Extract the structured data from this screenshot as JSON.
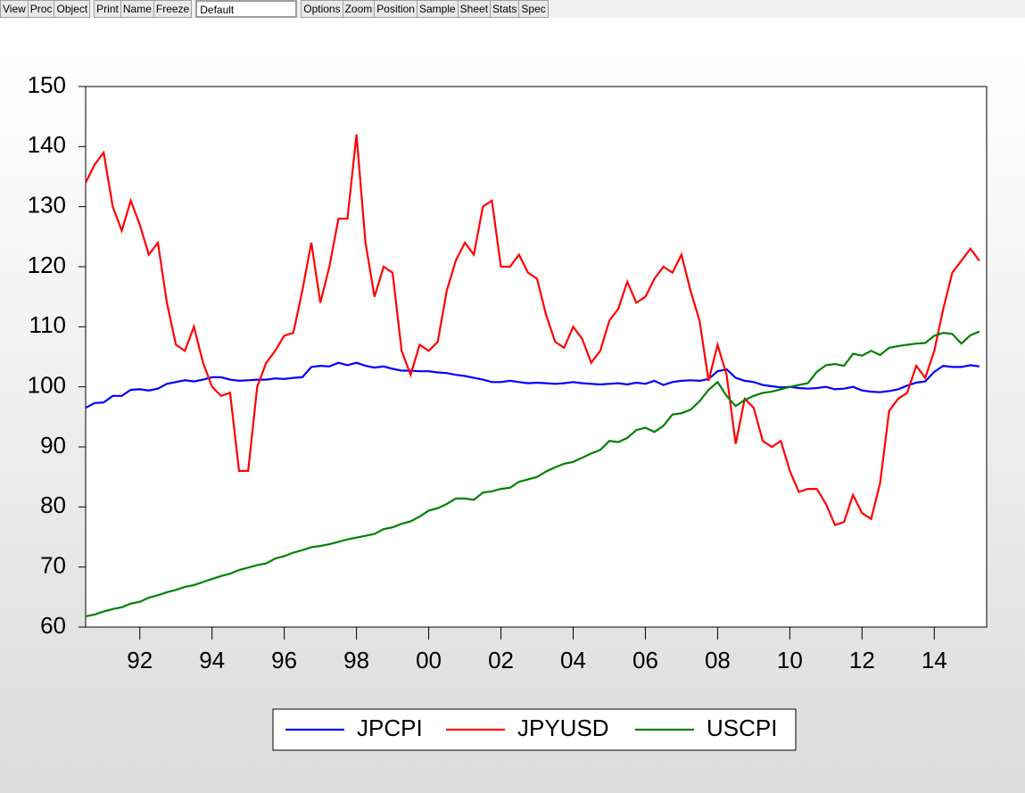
{
  "toolbar": {
    "buttons_left": [
      "View",
      "Proc",
      "Object"
    ],
    "buttons_mid": [
      "Print",
      "Name",
      "Freeze"
    ],
    "dropdown": "Default",
    "buttons_right": [
      "Options",
      "Zoom",
      "Position",
      "Sample",
      "Sheet",
      "Stats",
      "Spec"
    ]
  },
  "chart_data": {
    "type": "line",
    "legend": "bottom",
    "grid": false,
    "x": [
      1990.5,
      1990.75,
      1991,
      1991.25,
      1991.5,
      1991.75,
      1992,
      1992.25,
      1992.5,
      1992.75,
      1993,
      1993.25,
      1993.5,
      1993.75,
      1994,
      1994.25,
      1994.5,
      1994.75,
      1995,
      1995.25,
      1995.5,
      1995.75,
      1996,
      1996.25,
      1996.5,
      1996.75,
      1997,
      1997.25,
      1997.5,
      1997.75,
      1998,
      1998.25,
      1998.5,
      1998.75,
      1999,
      1999.25,
      1999.5,
      1999.75,
      2000,
      2000.25,
      2000.5,
      2000.75,
      2001,
      2001.25,
      2001.5,
      2001.75,
      2002,
      2002.25,
      2002.5,
      2002.75,
      2003,
      2003.25,
      2003.5,
      2003.75,
      2004,
      2004.25,
      2004.5,
      2004.75,
      2005,
      2005.25,
      2005.5,
      2005.75,
      2006,
      2006.25,
      2006.5,
      2006.75,
      2007,
      2007.25,
      2007.5,
      2007.75,
      2008,
      2008.25,
      2008.5,
      2008.75,
      2009,
      2009.25,
      2009.5,
      2009.75,
      2010,
      2010.25,
      2010.5,
      2010.75,
      2011,
      2011.25,
      2011.5,
      2011.75,
      2012,
      2012.25,
      2012.5,
      2012.75,
      2013,
      2013.25,
      2013.5,
      2013.75,
      2014,
      2014.25,
      2014.5,
      2014.75,
      2015,
      2015.25
    ],
    "xlim": [
      1990.5,
      2015.45
    ],
    "xticks": [
      {
        "value": 1992,
        "label": "92"
      },
      {
        "value": 1994,
        "label": "94"
      },
      {
        "value": 1996,
        "label": "96"
      },
      {
        "value": 1998,
        "label": "98"
      },
      {
        "value": 2000,
        "label": "00"
      },
      {
        "value": 2002,
        "label": "02"
      },
      {
        "value": 2004,
        "label": "04"
      },
      {
        "value": 2006,
        "label": "06"
      },
      {
        "value": 2008,
        "label": "08"
      },
      {
        "value": 2010,
        "label": "10"
      },
      {
        "value": 2012,
        "label": "12"
      },
      {
        "value": 2014,
        "label": "14"
      }
    ],
    "ylim": [
      60,
      150
    ],
    "yticks": [
      60,
      70,
      80,
      90,
      100,
      110,
      120,
      130,
      140,
      150
    ],
    "series": [
      {
        "name": "JPCPI",
        "color": "#0000ff",
        "values": [
          96.5,
          97.3,
          97.4,
          98.5,
          98.5,
          99.5,
          99.6,
          99.4,
          99.7,
          100.5,
          100.8,
          101.1,
          100.9,
          101.2,
          101.6,
          101.6,
          101.2,
          101,
          101.1,
          101.2,
          101.2,
          101.4,
          101.3,
          101.5,
          101.6,
          103.3,
          103.5,
          103.4,
          104,
          103.6,
          104,
          103.5,
          103.2,
          103.4,
          103,
          102.7,
          102.7,
          102.6,
          102.6,
          102.4,
          102.3,
          102,
          101.8,
          101.5,
          101.2,
          100.8,
          100.8,
          101,
          100.8,
          100.6,
          100.7,
          100.6,
          100.5,
          100.6,
          100.8,
          100.6,
          100.5,
          100.4,
          100.5,
          100.6,
          100.4,
          100.7,
          100.5,
          101,
          100.3,
          100.8,
          101,
          101.1,
          101,
          101.3,
          102.6,
          102.9,
          101.5,
          101,
          100.8,
          100.3,
          100.1,
          99.9,
          100,
          99.8,
          99.7,
          99.8,
          100,
          99.6,
          99.7,
          100,
          99.4,
          99.2,
          99.1,
          99.3,
          99.6,
          100.2,
          100.7,
          100.9,
          102.5,
          103.5,
          103.3,
          103.3,
          103.6,
          103.4
        ]
      },
      {
        "name": "JPYUSD",
        "color": "#ff0000",
        "values": [
          134,
          137,
          139,
          130,
          126,
          131,
          127,
          122,
          124,
          114,
          107,
          106,
          110,
          104,
          100,
          98.5,
          99,
          86,
          86,
          100,
          104,
          106,
          108.5,
          109,
          116,
          124,
          114,
          120,
          128,
          128,
          142,
          124,
          115,
          120,
          119,
          106,
          102,
          107,
          106,
          107.5,
          116,
          121,
          124,
          122,
          130,
          131,
          120,
          120,
          122,
          119,
          118,
          112,
          107.5,
          106.5,
          110,
          108,
          104,
          106,
          111,
          113,
          117.5,
          114,
          115,
          118,
          120,
          119,
          122,
          116,
          111,
          101,
          107,
          102,
          90.5,
          98,
          96.5,
          91,
          90,
          91,
          86,
          82.5,
          83,
          83,
          80.5,
          77,
          77.5,
          82,
          79,
          78,
          84,
          96,
          98,
          99,
          103.5,
          101.5,
          106,
          113,
          119,
          121,
          123,
          121
        ]
      },
      {
        "name": "USCPI",
        "color": "#008000",
        "values": [
          61.8,
          62.1,
          62.6,
          63,
          63.3,
          63.9,
          64.2,
          64.9,
          65.3,
          65.8,
          66.2,
          66.7,
          67,
          67.5,
          68,
          68.5,
          68.9,
          69.5,
          69.9,
          70.3,
          70.6,
          71.4,
          71.8,
          72.4,
          72.8,
          73.3,
          73.5,
          73.8,
          74.2,
          74.6,
          74.9,
          75.2,
          75.5,
          76.3,
          76.6,
          77.2,
          77.6,
          78.4,
          79.4,
          79.8,
          80.5,
          81.4,
          81.4,
          81.2,
          82.4,
          82.6,
          83,
          83.2,
          84.2,
          84.6,
          85,
          85.9,
          86.6,
          87.2,
          87.5,
          88.2,
          88.9,
          89.5,
          91,
          90.8,
          91.5,
          92.8,
          93.2,
          92.5,
          93.5,
          95.4,
          95.6,
          96.2,
          97.6,
          99.5,
          100.8,
          98.5,
          96.8,
          97.8,
          98.5,
          99,
          99.2,
          99.6,
          100,
          100.3,
          100.6,
          102.5,
          103.6,
          103.8,
          103.5,
          105.5,
          105.2,
          106,
          105.3,
          106.5,
          106.8,
          107,
          107.2,
          107.3,
          108.5,
          109,
          108.8,
          107.2,
          108.6,
          109.2
        ]
      }
    ]
  }
}
